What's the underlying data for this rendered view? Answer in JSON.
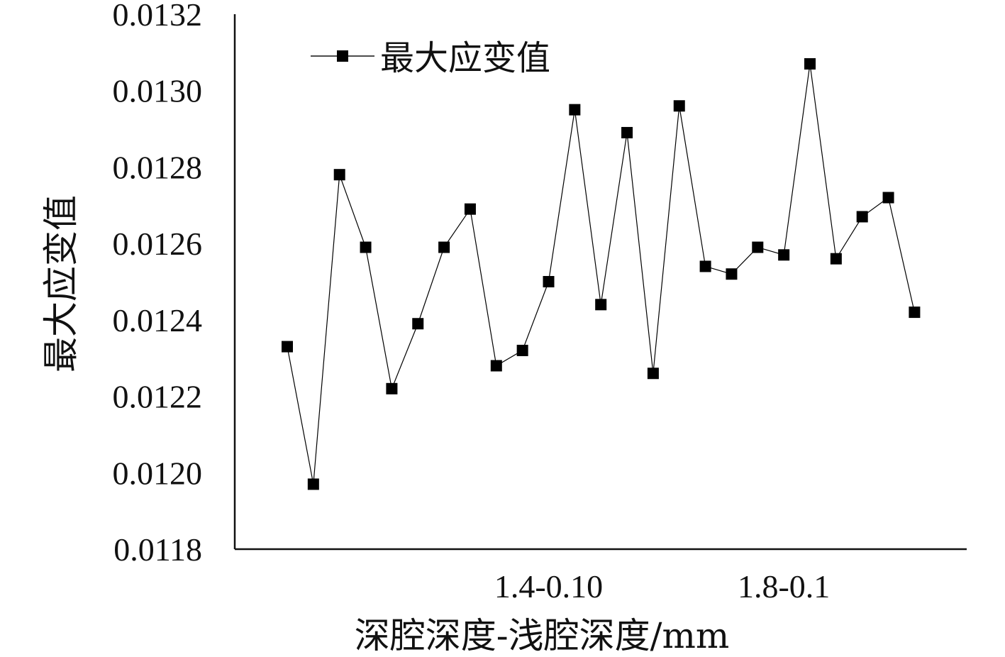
{
  "chart_data": {
    "type": "line",
    "title": "",
    "xlabel": "深腔深度-浅腔深度/mm",
    "ylabel": "最大应变值",
    "ylim": [
      0.0118,
      0.0132
    ],
    "y_ticks": [
      "0.0118",
      "0.0120",
      "0.0122",
      "0.0124",
      "0.0126",
      "0.0128",
      "0.0130",
      "0.0132"
    ],
    "x_tick_labels": [
      {
        "index": 10,
        "label": "1.4-0.10"
      },
      {
        "index": 19,
        "label": "1.8-0.1"
      }
    ],
    "grid": false,
    "legend": "top-left",
    "series": [
      {
        "name": "最大应变值",
        "color": "#000000",
        "marker": "square",
        "values": [
          0.01233,
          0.01197,
          0.01278,
          0.01259,
          0.01222,
          0.01239,
          0.01259,
          0.01269,
          0.01228,
          0.01232,
          0.0125,
          0.01295,
          0.01244,
          0.01289,
          0.01226,
          0.01296,
          0.01254,
          0.01252,
          0.01259,
          0.01257,
          0.01307,
          0.01256,
          0.01267,
          0.01272,
          0.01242
        ]
      }
    ]
  }
}
